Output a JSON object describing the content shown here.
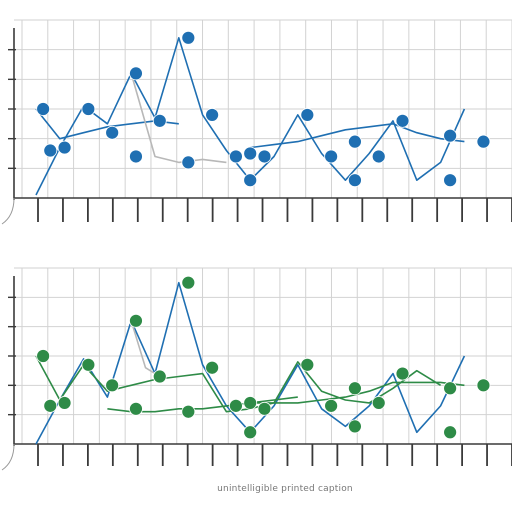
{
  "caption": "unintelligible printed caption",
  "colors": {
    "background": "#ffffff",
    "grid": "#d2d2d2",
    "axis": "#3a3a3a",
    "blue": "#1f6fb2",
    "green": "#2e8b47",
    "muted": "#b8b8b8"
  },
  "chart_data": [
    {
      "type": "line",
      "title": "",
      "xlabel": "",
      "ylabel": "",
      "grid": true,
      "xlim": [
        0,
        20
      ],
      "ylim": [
        0,
        6
      ],
      "series": [
        {
          "color": "#1f6fb2",
          "points": [
            [
              0,
              0.1
            ],
            [
              1,
              1.7
            ],
            [
              2,
              3.1
            ],
            [
              3,
              2.5
            ],
            [
              4,
              4.2
            ],
            [
              5,
              2.7
            ],
            [
              6,
              5.4
            ],
            [
              7,
              2.8
            ],
            [
              8,
              1.6
            ],
            [
              9,
              0.6
            ],
            [
              10,
              1.4
            ],
            [
              11,
              2.8
            ],
            [
              12,
              1.5
            ],
            [
              13,
              0.6
            ],
            [
              14,
              1.5
            ],
            [
              15,
              2.6
            ],
            [
              16,
              0.6
            ],
            [
              17,
              1.2
            ],
            [
              18,
              3.0
            ]
          ]
        },
        {
          "color": "#1f6fb2",
          "points": [
            [
              0,
              3.0
            ],
            [
              1,
              2.0
            ],
            [
              2,
              2.2
            ],
            [
              3,
              2.4
            ],
            [
              4,
              2.5
            ],
            [
              5,
              2.6
            ],
            [
              6,
              2.5
            ]
          ]
        },
        {
          "color": "#1f6fb2",
          "points": [
            [
              9,
              1.7
            ],
            [
              10,
              1.8
            ],
            [
              11,
              1.9
            ],
            [
              12,
              2.1
            ],
            [
              13,
              2.3
            ],
            [
              14,
              2.4
            ],
            [
              15,
              2.5
            ],
            [
              16,
              2.2
            ],
            [
              17,
              2.0
            ],
            [
              18,
              1.9
            ]
          ]
        },
        {
          "color": "#b8b8b8",
          "points": [
            [
              4,
              4.2
            ],
            [
              5,
              1.4
            ],
            [
              6,
              1.2
            ],
            [
              7,
              1.3
            ],
            [
              8,
              1.2
            ]
          ]
        }
      ],
      "markers": [
        {
          "x": 0.3,
          "y": 3.0,
          "color": "#1f6fb2"
        },
        {
          "x": 0.6,
          "y": 1.6,
          "color": "#1f6fb2"
        },
        {
          "x": 1.2,
          "y": 1.7,
          "color": "#1f6fb2"
        },
        {
          "x": 2.2,
          "y": 3.0,
          "color": "#1f6fb2"
        },
        {
          "x": 3.2,
          "y": 2.2,
          "color": "#1f6fb2"
        },
        {
          "x": 4.2,
          "y": 4.2,
          "color": "#1f6fb2"
        },
        {
          "x": 4.2,
          "y": 1.4,
          "color": "#1f6fb2"
        },
        {
          "x": 5.2,
          "y": 2.6,
          "color": "#1f6fb2"
        },
        {
          "x": 6.4,
          "y": 5.4,
          "color": "#1f6fb2"
        },
        {
          "x": 6.4,
          "y": 1.2,
          "color": "#1f6fb2"
        },
        {
          "x": 7.4,
          "y": 2.8,
          "color": "#1f6fb2"
        },
        {
          "x": 8.4,
          "y": 1.4,
          "color": "#1f6fb2"
        },
        {
          "x": 9.0,
          "y": 0.6,
          "color": "#1f6fb2"
        },
        {
          "x": 9.0,
          "y": 1.5,
          "color": "#1f6fb2"
        },
        {
          "x": 9.6,
          "y": 1.4,
          "color": "#1f6fb2"
        },
        {
          "x": 11.4,
          "y": 2.8,
          "color": "#1f6fb2"
        },
        {
          "x": 12.4,
          "y": 1.4,
          "color": "#1f6fb2"
        },
        {
          "x": 13.4,
          "y": 0.6,
          "color": "#1f6fb2"
        },
        {
          "x": 13.4,
          "y": 1.9,
          "color": "#1f6fb2"
        },
        {
          "x": 14.4,
          "y": 1.4,
          "color": "#1f6fb2"
        },
        {
          "x": 15.4,
          "y": 2.6,
          "color": "#1f6fb2"
        },
        {
          "x": 17.4,
          "y": 0.6,
          "color": "#1f6fb2"
        },
        {
          "x": 17.4,
          "y": 2.1,
          "color": "#1f6fb2"
        },
        {
          "x": 18.8,
          "y": 1.9,
          "color": "#1f6fb2"
        }
      ]
    },
    {
      "type": "line",
      "title": "",
      "xlabel": "",
      "ylabel": "",
      "grid": true,
      "xlim": [
        0,
        20
      ],
      "ylim": [
        0,
        6
      ],
      "series": [
        {
          "color": "#1f6fb2",
          "points": [
            [
              0,
              0
            ],
            [
              1,
              1.5
            ],
            [
              2,
              2.9
            ],
            [
              3,
              1.6
            ],
            [
              4,
              4.2
            ],
            [
              5,
              2.4
            ],
            [
              6,
              5.5
            ],
            [
              7,
              2.7
            ],
            [
              8,
              1.3
            ],
            [
              9,
              0.4
            ],
            [
              10,
              1.3
            ],
            [
              11,
              2.7
            ],
            [
              12,
              1.2
            ],
            [
              13,
              0.6
            ],
            [
              14,
              1.3
            ],
            [
              15,
              2.4
            ],
            [
              16,
              0.4
            ],
            [
              17,
              1.3
            ],
            [
              18,
              3.0
            ]
          ]
        },
        {
          "color": "#2e8b47",
          "points": [
            [
              0,
              3.0
            ],
            [
              1,
              1.5
            ],
            [
              2,
              2.7
            ],
            [
              3,
              1.8
            ],
            [
              4,
              2.0
            ],
            [
              5,
              2.2
            ],
            [
              6,
              2.3
            ],
            [
              7,
              2.4
            ],
            [
              8,
              1.1
            ],
            [
              9,
              1.2
            ],
            [
              10,
              1.4
            ],
            [
              11,
              2.8
            ],
            [
              12,
              1.8
            ],
            [
              13,
              1.5
            ],
            [
              14,
              1.4
            ],
            [
              15,
              1.9
            ],
            [
              16,
              2.5
            ],
            [
              17,
              2.0
            ]
          ]
        },
        {
          "color": "#2e8b47",
          "points": [
            [
              3,
              1.2
            ],
            [
              4,
              1.1
            ],
            [
              5,
              1.1
            ],
            [
              6,
              1.2
            ],
            [
              7,
              1.2
            ],
            [
              8,
              1.3
            ],
            [
              9,
              1.4
            ],
            [
              10,
              1.5
            ],
            [
              11,
              1.6
            ]
          ]
        },
        {
          "color": "#2e8b47",
          "points": [
            [
              9,
              1.4
            ],
            [
              10,
              1.4
            ],
            [
              11,
              1.4
            ],
            [
              12,
              1.5
            ],
            [
              13,
              1.6
            ],
            [
              14,
              1.8
            ],
            [
              15,
              2.1
            ],
            [
              16,
              2.1
            ],
            [
              17,
              2.1
            ],
            [
              18,
              2.0
            ]
          ]
        },
        {
          "color": "#b8b8b8",
          "points": [
            [
              4,
              4.2
            ],
            [
              4.6,
              2.6
            ],
            [
              5.4,
              2.2
            ]
          ]
        }
      ],
      "markers": [
        {
          "x": 0.3,
          "y": 3.0,
          "color": "#2e8b47"
        },
        {
          "x": 0.6,
          "y": 1.3,
          "color": "#2e8b47"
        },
        {
          "x": 1.2,
          "y": 1.4,
          "color": "#2e8b47"
        },
        {
          "x": 2.2,
          "y": 2.7,
          "color": "#2e8b47"
        },
        {
          "x": 3.2,
          "y": 2.0,
          "color": "#2e8b47"
        },
        {
          "x": 4.2,
          "y": 4.2,
          "color": "#2e8b47"
        },
        {
          "x": 4.2,
          "y": 1.2,
          "color": "#2e8b47"
        },
        {
          "x": 5.2,
          "y": 2.3,
          "color": "#2e8b47"
        },
        {
          "x": 6.4,
          "y": 5.5,
          "color": "#2e8b47"
        },
        {
          "x": 6.4,
          "y": 1.1,
          "color": "#2e8b47"
        },
        {
          "x": 7.4,
          "y": 2.6,
          "color": "#2e8b47"
        },
        {
          "x": 8.4,
          "y": 1.3,
          "color": "#2e8b47"
        },
        {
          "x": 9.0,
          "y": 0.4,
          "color": "#2e8b47"
        },
        {
          "x": 9.0,
          "y": 1.4,
          "color": "#2e8b47"
        },
        {
          "x": 9.6,
          "y": 1.2,
          "color": "#2e8b47"
        },
        {
          "x": 11.4,
          "y": 2.7,
          "color": "#2e8b47"
        },
        {
          "x": 12.4,
          "y": 1.3,
          "color": "#2e8b47"
        },
        {
          "x": 13.4,
          "y": 0.6,
          "color": "#2e8b47"
        },
        {
          "x": 13.4,
          "y": 1.9,
          "color": "#2e8b47"
        },
        {
          "x": 14.4,
          "y": 1.4,
          "color": "#2e8b47"
        },
        {
          "x": 15.4,
          "y": 2.4,
          "color": "#2e8b47"
        },
        {
          "x": 17.4,
          "y": 0.4,
          "color": "#2e8b47"
        },
        {
          "x": 17.4,
          "y": 1.9,
          "color": "#2e8b47"
        },
        {
          "x": 18.8,
          "y": 2.0,
          "color": "#2e8b47"
        }
      ]
    }
  ]
}
